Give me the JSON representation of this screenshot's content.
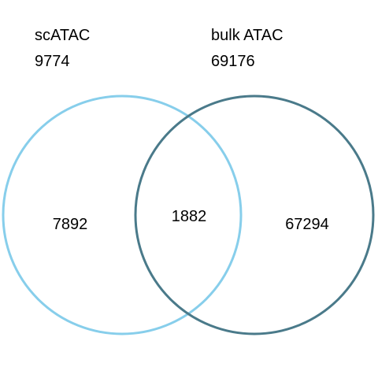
{
  "venn": {
    "sets": [
      {
        "name": "scATAC",
        "total": "9774",
        "color": "#87CEEB"
      },
      {
        "name": "bulk ATAC",
        "total": "69176",
        "color": "#4A7A8A"
      }
    ],
    "regions": {
      "only_a": "7892",
      "overlap": "1882",
      "only_b": "67294"
    }
  }
}
